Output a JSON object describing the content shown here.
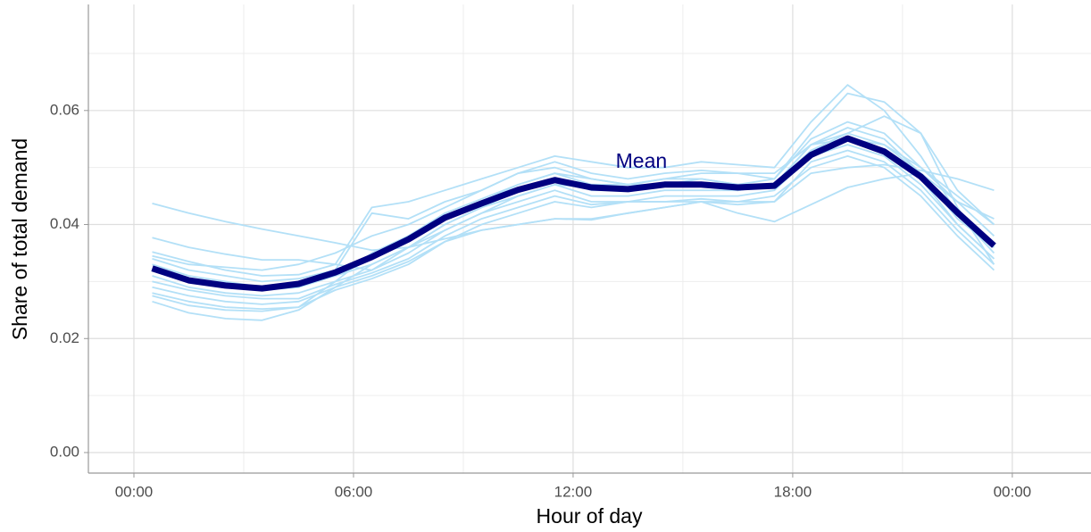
{
  "chart_data": {
    "type": "line",
    "xlabel": "Hour of day",
    "ylabel": "Share of total demand",
    "x": [
      0.5,
      1.5,
      2.5,
      3.5,
      4.5,
      5.5,
      6.5,
      7.5,
      8.5,
      9.5,
      10.5,
      11.5,
      12.5,
      13.5,
      14.5,
      15.5,
      16.5,
      17.5,
      18.5,
      19.5,
      20.5,
      21.5,
      22.5,
      23.5
    ],
    "xlim": [
      -1.244,
      26.15
    ],
    "xticks": [
      {
        "value": 0,
        "label": "00:00"
      },
      {
        "value": 6,
        "label": "06:00"
      },
      {
        "value": 12,
        "label": "12:00"
      },
      {
        "value": 18,
        "label": "18:00"
      },
      {
        "value": 24,
        "label": "00:00"
      }
    ],
    "minor_xticks": [
      3,
      9,
      15,
      21
    ],
    "ylim": [
      -0.0036,
      0.0786
    ],
    "yticks": [
      {
        "value": 0,
        "label": "0.00"
      },
      0.02,
      0.04,
      0.06
    ],
    "minor_yticks": [
      0.01,
      0.03,
      0.05,
      0.07
    ],
    "grid": true,
    "series": [
      {
        "color": "#b3e0f7",
        "values": [
          0.0437,
          0.042,
          0.0405,
          0.0392,
          0.038,
          0.0368,
          0.0355,
          0.036,
          0.0375,
          0.039,
          0.04,
          0.041,
          0.0408,
          0.042,
          0.043,
          0.044,
          0.0435,
          0.044,
          0.049,
          0.05,
          0.0505,
          0.0495,
          0.048,
          0.046
        ]
      },
      {
        "color": "#b3e0f7",
        "values": [
          0.0377,
          0.036,
          0.0348,
          0.0338,
          0.0338,
          0.033,
          0.032,
          0.036,
          0.039,
          0.042,
          0.045,
          0.047,
          0.0465,
          0.046,
          0.047,
          0.048,
          0.047,
          0.047,
          0.053,
          0.056,
          0.054,
          0.05,
          0.045,
          0.04
        ]
      },
      {
        "color": "#b3e0f7",
        "values": [
          0.0352,
          0.0335,
          0.032,
          0.031,
          0.0312,
          0.033,
          0.043,
          0.044,
          0.046,
          0.048,
          0.05,
          0.052,
          0.051,
          0.05,
          0.05,
          0.051,
          0.0505,
          0.05,
          0.058,
          0.0645,
          0.06,
          0.052,
          0.042,
          0.036
        ]
      },
      {
        "color": "#b3e0f7",
        "values": [
          0.034,
          0.032,
          0.031,
          0.03,
          0.0305,
          0.032,
          0.042,
          0.041,
          0.044,
          0.046,
          0.049,
          0.051,
          0.049,
          0.048,
          0.049,
          0.0495,
          0.049,
          0.048,
          0.056,
          0.063,
          0.0615,
          0.056,
          0.043,
          0.033
        ]
      },
      {
        "color": "#b3e0f7",
        "values": [
          0.033,
          0.031,
          0.03,
          0.029,
          0.0295,
          0.031,
          0.034,
          0.038,
          0.042,
          0.0445,
          0.047,
          0.049,
          0.047,
          0.047,
          0.048,
          0.048,
          0.047,
          0.048,
          0.055,
          0.058,
          0.056,
          0.05,
          0.044,
          0.038
        ]
      },
      {
        "color": "#b3e0f7",
        "values": [
          0.032,
          0.03,
          0.029,
          0.0285,
          0.029,
          0.031,
          0.033,
          0.036,
          0.04,
          0.043,
          0.045,
          0.047,
          0.045,
          0.045,
          0.046,
          0.046,
          0.046,
          0.047,
          0.054,
          0.057,
          0.055,
          0.049,
          0.042,
          0.035
        ]
      },
      {
        "color": "#b3e0f7",
        "values": [
          0.031,
          0.029,
          0.028,
          0.0275,
          0.028,
          0.03,
          0.032,
          0.035,
          0.039,
          0.042,
          0.044,
          0.046,
          0.044,
          0.044,
          0.045,
          0.045,
          0.045,
          0.046,
          0.052,
          0.054,
          0.052,
          0.047,
          0.04,
          0.034
        ]
      },
      {
        "color": "#b3e0f7",
        "values": [
          0.03,
          0.0285,
          0.0275,
          0.027,
          0.027,
          0.0295,
          0.0315,
          0.034,
          0.038,
          0.041,
          0.043,
          0.045,
          0.0435,
          0.044,
          0.044,
          0.0445,
          0.044,
          0.044,
          0.051,
          0.053,
          0.051,
          0.046,
          0.039,
          0.033
        ]
      },
      {
        "color": "#b3e0f7",
        "values": [
          0.029,
          0.0275,
          0.0265,
          0.026,
          0.0265,
          0.029,
          0.031,
          0.0335,
          0.037,
          0.039,
          0.04,
          0.041,
          0.041,
          0.042,
          0.043,
          0.044,
          0.042,
          0.0405,
          0.0435,
          0.0465,
          0.048,
          0.049,
          0.044,
          0.041
        ]
      },
      {
        "color": "#b3e0f7",
        "values": [
          0.028,
          0.0265,
          0.0255,
          0.0252,
          0.0255,
          0.0285,
          0.0305,
          0.033,
          0.037,
          0.04,
          0.042,
          0.044,
          0.043,
          0.044,
          0.044,
          0.044,
          0.044,
          0.045,
          0.05,
          0.052,
          0.05,
          0.045,
          0.038,
          0.032
        ]
      },
      {
        "color": "#b3e0f7",
        "values": [
          0.0265,
          0.0245,
          0.0235,
          0.0232,
          0.025,
          0.029,
          0.033,
          0.036,
          0.04,
          0.043,
          0.046,
          0.048,
          0.046,
          0.046,
          0.047,
          0.047,
          0.046,
          0.047,
          0.054,
          0.055,
          0.053,
          0.048,
          0.04,
          0.034
        ]
      },
      {
        "color": "#b3e0f7",
        "values": [
          0.0345,
          0.033,
          0.0325,
          0.032,
          0.033,
          0.035,
          0.038,
          0.04,
          0.043,
          0.046,
          0.049,
          0.05,
          0.048,
          0.047,
          0.048,
          0.049,
          0.049,
          0.049,
          0.054,
          0.056,
          0.059,
          0.056,
          0.046,
          0.04
        ]
      },
      {
        "color": "#b3e0f7",
        "values": [
          0.0275,
          0.0258,
          0.025,
          0.0248,
          0.0255,
          0.03,
          0.035,
          0.038,
          0.041,
          0.044,
          0.047,
          0.049,
          0.048,
          0.047,
          0.047,
          0.047,
          0.046,
          0.047,
          0.053,
          0.055,
          0.054,
          0.049,
          0.041,
          0.036
        ]
      },
      {
        "name": "Mean",
        "color": "#000080",
        "values": [
          0.0323,
          0.0302,
          0.0293,
          0.0288,
          0.0296,
          0.0316,
          0.0343,
          0.0374,
          0.0412,
          0.0437,
          0.0461,
          0.0478,
          0.0465,
          0.0462,
          0.047,
          0.047,
          0.0465,
          0.0468,
          0.0522,
          0.0551,
          0.0528,
          0.0484,
          0.0421,
          0.0363
        ]
      }
    ]
  }
}
